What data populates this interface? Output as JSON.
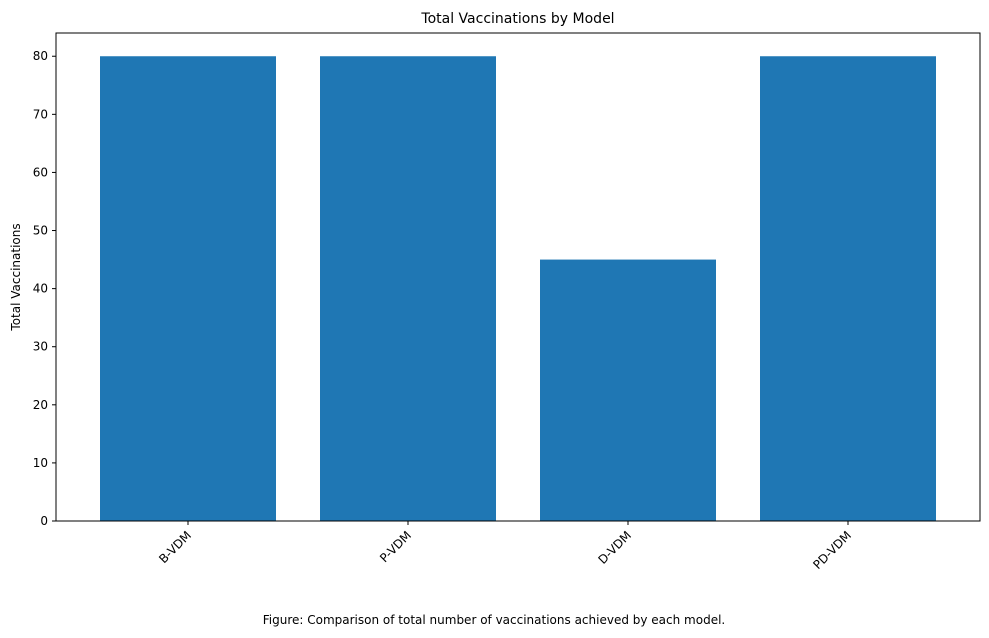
{
  "chart_data": {
    "type": "bar",
    "title": "Total Vaccinations by Model",
    "xlabel": "",
    "ylabel": "Total Vaccinations",
    "categories": [
      "B-VDM",
      "P-VDM",
      "D-VDM",
      "PD-VDM"
    ],
    "values": [
      80,
      80,
      45,
      80
    ],
    "ylim": [
      0,
      84
    ],
    "yticks": [
      0,
      10,
      20,
      30,
      40,
      50,
      60,
      70,
      80
    ],
    "bar_color": "#1f77b4",
    "grid": false,
    "xtick_rotation_deg": 45
  },
  "caption": "Figure: Comparison of total number of vaccinations achieved by each model."
}
